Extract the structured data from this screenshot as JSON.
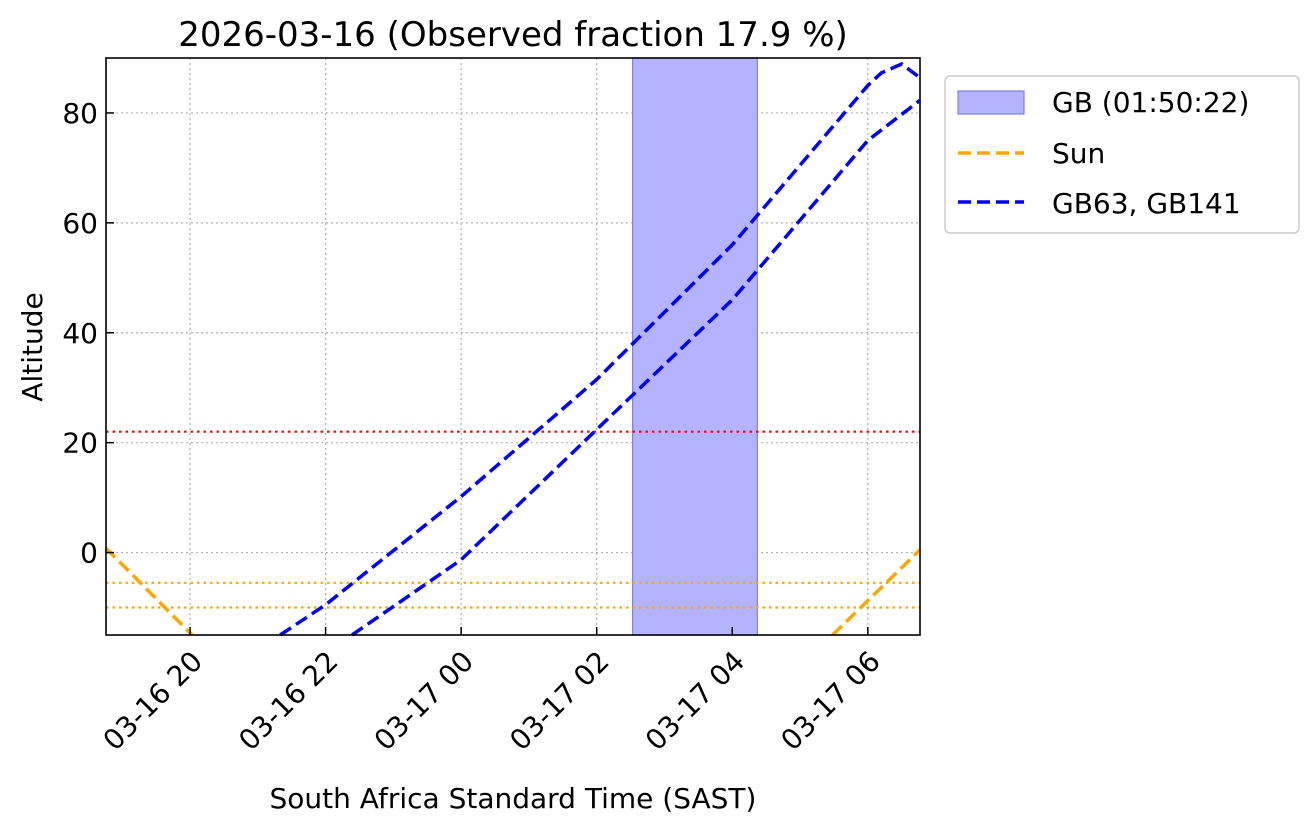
{
  "chart_data": {
    "type": "line",
    "title": "2026-03-16 (Observed fraction 17.9 %)",
    "xlabel": "South Africa Standard Time (SAST)",
    "ylabel": "Altitude",
    "x_units": "hours since 2026-03-16 00:00 SAST",
    "xlim": [
      18.76,
      30.77
    ],
    "ylim": [
      -15,
      90
    ],
    "grid": true,
    "xticks": [
      {
        "v": 20,
        "label": "03-16 20"
      },
      {
        "v": 22,
        "label": "03-16 22"
      },
      {
        "v": 24,
        "label": "03-17 00"
      },
      {
        "v": 26,
        "label": "03-17 02"
      },
      {
        "v": 28,
        "label": "03-17 04"
      },
      {
        "v": 30,
        "label": "03-17 06"
      }
    ],
    "yticks": [
      0,
      20,
      40,
      60,
      80
    ],
    "shaded_span": {
      "label": "GB (01:50:22)",
      "x": [
        26.53,
        28.37
      ],
      "color": "#b3b3ff"
    },
    "hlines": [
      {
        "y": 22,
        "color": "#ff0000",
        "style": "dotted"
      },
      {
        "y": -5.5,
        "color": "#ffa500",
        "style": "dotted"
      },
      {
        "y": -10,
        "color": "#ffa500",
        "style": "dotted"
      }
    ],
    "series": [
      {
        "name": "Sun",
        "color": "#ffa500",
        "segments": [
          [
            [
              18.76,
              0.8
            ],
            [
              20.03,
              -15
            ]
          ],
          [
            [
              29.48,
              -15
            ],
            [
              30.77,
              0.5
            ]
          ]
        ]
      },
      {
        "name": "GB63",
        "color": "#0000ff",
        "segments": [
          [
            [
              21.33,
              -15
            ],
            [
              22,
              -9.5
            ],
            [
              24,
              10.2
            ],
            [
              26,
              31.5
            ],
            [
              28,
              56
            ],
            [
              29,
              70.5
            ],
            [
              30,
              85
            ],
            [
              30.2,
              87.3
            ],
            [
              30.5,
              88.9
            ],
            [
              30.77,
              86.4
            ]
          ]
        ]
      },
      {
        "name": "GB141",
        "color": "#0000ff",
        "segments": [
          [
            [
              22.39,
              -15
            ],
            [
              24,
              -1.3
            ],
            [
              26,
              22.4
            ],
            [
              28,
              46
            ],
            [
              30,
              75
            ],
            [
              30.77,
              82.3
            ]
          ]
        ]
      }
    ],
    "legend": {
      "placement": "outside-top-right",
      "entries": [
        "GB (01:50:22)",
        "Sun",
        "GB63, GB141"
      ]
    }
  }
}
